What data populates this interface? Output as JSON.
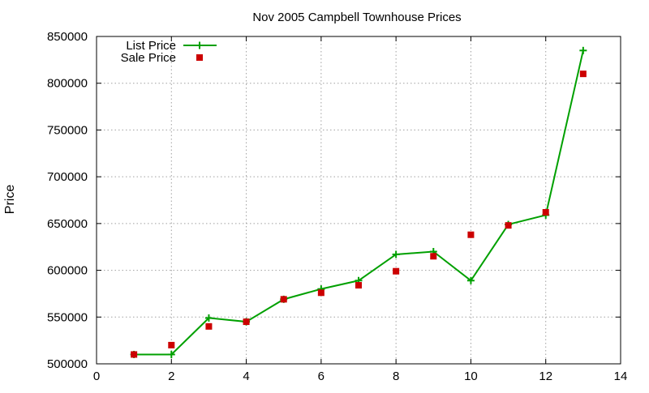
{
  "colors": {
    "list_price": "#00a000",
    "sale_price": "#cc0000"
  },
  "chart_data": {
    "type": "line",
    "title": "Nov 2005 Campbell Townhouse Prices",
    "xlabel": "",
    "ylabel": "Price",
    "xlim": [
      0,
      14
    ],
    "ylim": [
      500000,
      850000
    ],
    "xticks": [
      0,
      2,
      4,
      6,
      8,
      10,
      12,
      14
    ],
    "yticks": [
      500000,
      550000,
      600000,
      650000,
      700000,
      750000,
      800000,
      850000
    ],
    "grid": true,
    "legend_position": "top-left",
    "series": [
      {
        "name": "List Price",
        "style": "line-with-plus-markers",
        "x": [
          1,
          2,
          3,
          4,
          5,
          6,
          7,
          8,
          9,
          10,
          11,
          12,
          13
        ],
        "y": [
          510000,
          510000,
          549000,
          545000,
          569000,
          580000,
          589000,
          617000,
          620000,
          589000,
          649000,
          659000,
          835000
        ]
      },
      {
        "name": "Sale Price",
        "style": "square-markers",
        "x": [
          1,
          2,
          3,
          4,
          5,
          6,
          7,
          8,
          9,
          10,
          11,
          12,
          13
        ],
        "y": [
          510000,
          520000,
          540000,
          545000,
          569000,
          576000,
          584000,
          599000,
          615000,
          638000,
          648000,
          662000,
          810000
        ]
      }
    ]
  }
}
